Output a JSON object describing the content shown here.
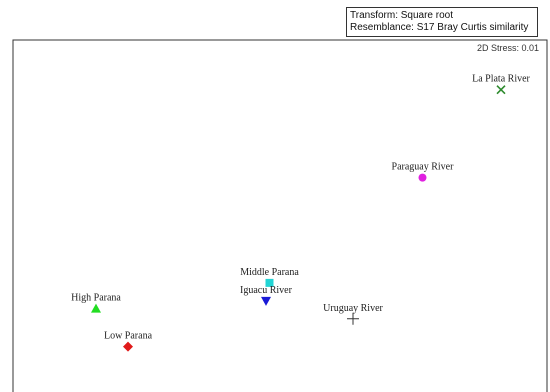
{
  "info": {
    "transform": "Transform: Square root",
    "resemblance": "Resemblance: S17 Bray Curtis similarity"
  },
  "chart_data": {
    "type": "scatter",
    "title": "",
    "xlabel": "",
    "ylabel": "",
    "stress_label": "2D Stress: 0.01",
    "xlim": [
      0,
      100
    ],
    "ylim": [
      0,
      100
    ],
    "points": [
      {
        "label": "La Plata River",
        "x": 91.2,
        "y": 85.9,
        "marker": "x",
        "color": "#2e8b2e"
      },
      {
        "label": "Paraguay River",
        "x": 75.5,
        "y": 60.9,
        "marker": "circle",
        "color": "#e020e0"
      },
      {
        "label": "Middle Parana",
        "x": 44.9,
        "y": 31.0,
        "marker": "square",
        "color": "#22d4d4"
      },
      {
        "label": "Iguacu River",
        "x": 44.2,
        "y": 25.9,
        "marker": "triangle-down",
        "color": "#1a1ad6"
      },
      {
        "label": "High Parana",
        "x": 10.2,
        "y": 23.7,
        "marker": "triangle-up",
        "color": "#22dd22"
      },
      {
        "label": "Low Parana",
        "x": 16.6,
        "y": 12.9,
        "marker": "diamond",
        "color": "#e01a1a"
      },
      {
        "label": "Uruguay River",
        "x": 61.6,
        "y": 20.8,
        "marker": "plus",
        "color": "#333333"
      }
    ]
  }
}
